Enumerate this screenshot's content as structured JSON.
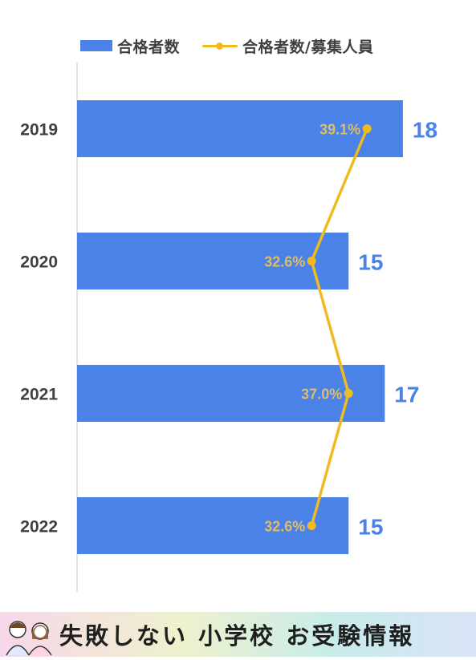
{
  "legend": {
    "bar_label": "合格者数",
    "line_label": "合格者数/募集人員"
  },
  "footer": {
    "title": "失敗しない 小学校 お受験情報"
  },
  "colors": {
    "bar": "#4a82e8",
    "line": "#f0bb1f",
    "value_label": "#4a82e8",
    "percent_label": "#e0bd62",
    "year_label": "#404040",
    "axis": "#d9d9d9"
  },
  "chart_data": {
    "type": "bar",
    "orientation": "horizontal",
    "categories": [
      "2019",
      "2020",
      "2021",
      "2022"
    ],
    "series": [
      {
        "name": "合格者数",
        "type": "bar",
        "values": [
          18,
          15,
          17,
          15
        ],
        "labels": [
          "18",
          "15",
          "17",
          "15"
        ]
      },
      {
        "name": "合格者数/募集人員",
        "type": "line",
        "values": [
          39.1,
          32.6,
          37.0,
          32.6
        ],
        "labels": [
          "39.1%",
          "32.6%",
          "37.0%",
          "32.6%"
        ]
      }
    ],
    "xlim": [
      0,
      20
    ],
    "legend_position": "top",
    "grid": false
  }
}
